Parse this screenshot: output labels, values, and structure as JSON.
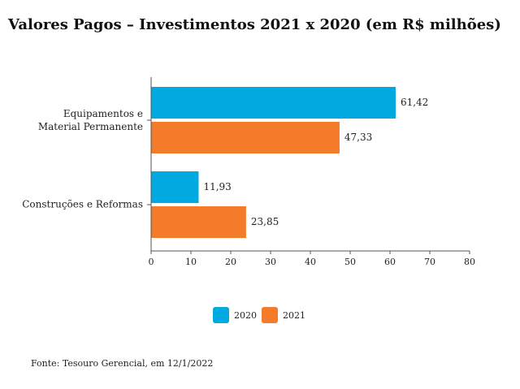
{
  "chart_data": {
    "type": "bar",
    "orientation": "horizontal",
    "title": "Valores Pagos – Investimentos 2021 x 2020 (em R$ milhões)",
    "categories": [
      "Equipamentos e\nMaterial Permanente",
      "Construções e Reformas"
    ],
    "series": [
      {
        "name": "2020",
        "color": "#00a9e0",
        "values": [
          61.42,
          11.93
        ],
        "value_labels": [
          "61,42",
          "11,93"
        ]
      },
      {
        "name": "2021",
        "color": "#f47b2a",
        "values": [
          47.33,
          23.85
        ],
        "value_labels": [
          "47,33",
          "23,85"
        ]
      }
    ],
    "xlim": [
      0,
      80
    ],
    "xticks": [
      0,
      10,
      20,
      30,
      40,
      50,
      60,
      70,
      80
    ],
    "legend": "bottom",
    "source": "Fonte: Tesouro Gerencial, em 12/1/2022"
  }
}
